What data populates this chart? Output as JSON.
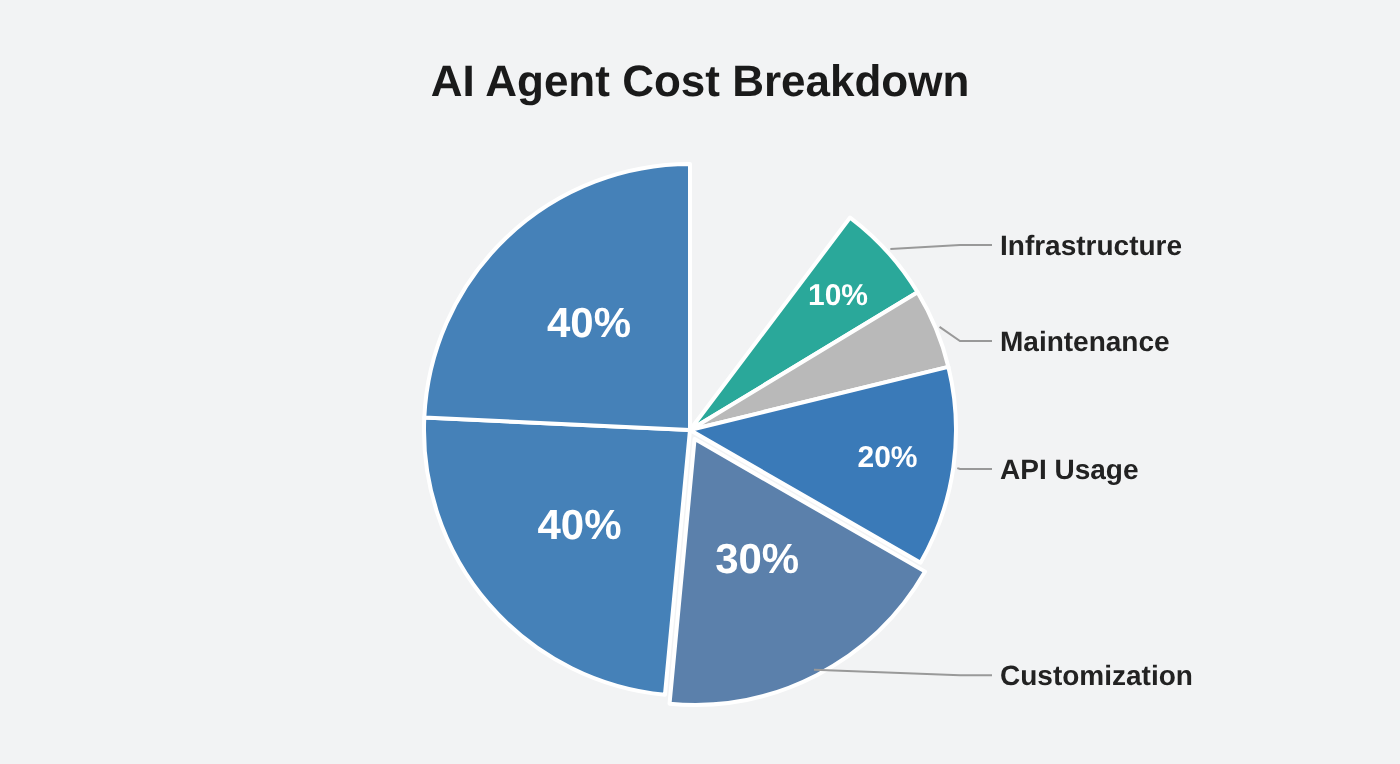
{
  "chart_data": {
    "type": "pie",
    "title": "AI Agent Cost Breakdown",
    "categories": [
      "Infrastructure",
      "Maintenance",
      "API Usage",
      "Customization",
      null,
      null
    ],
    "values": [
      10,
      8,
      20,
      30,
      40,
      40
    ],
    "value_labels": [
      "10%",
      null,
      "20%",
      "30%",
      "40%",
      "40%"
    ],
    "colors": [
      "#2aa89a",
      "#b9b9b9",
      "#3a7ab8",
      "#5b80ab",
      "#4581b8",
      "#4581b8"
    ]
  }
}
